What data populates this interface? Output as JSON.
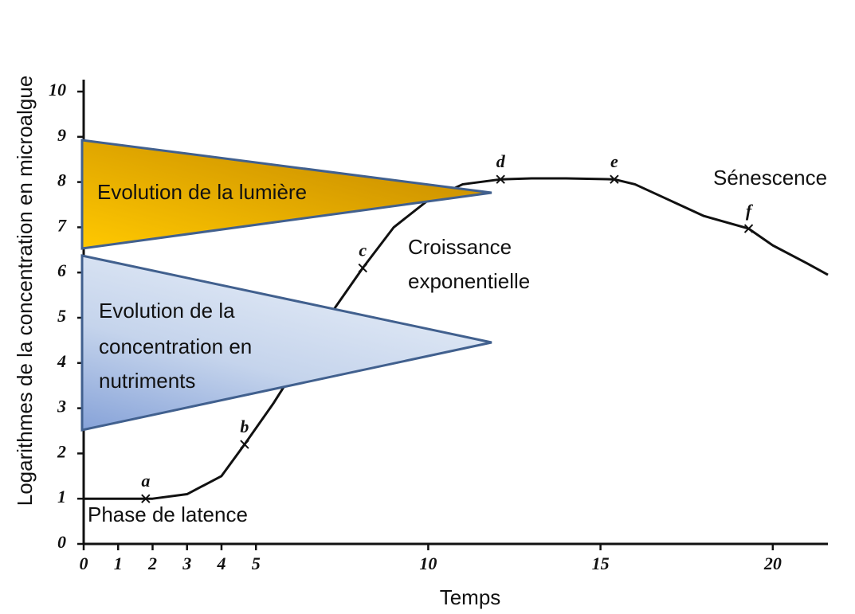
{
  "chart_data": {
    "type": "line",
    "x_label": "Temps",
    "y_label": "Logarithmes de la concentration en microalgue",
    "xlim": [
      0,
      21.6
    ],
    "ylim": [
      0,
      10
    ],
    "xticks": [
      0,
      1,
      2,
      3,
      4,
      5,
      10,
      15,
      20
    ],
    "yticks": [
      0,
      1,
      2,
      3,
      4,
      5,
      6,
      7,
      8,
      9,
      10
    ],
    "x": [
      0,
      1,
      2,
      3,
      4,
      4.67,
      5.5,
      6,
      7,
      8.1,
      9,
      10,
      11,
      12.1,
      13,
      14,
      15.4,
      16,
      17,
      18,
      19.3,
      20,
      21,
      21.6
    ],
    "series": [
      {
        "color": "#111111",
        "values": [
          1,
          1,
          1,
          1.1,
          1.5,
          2.2,
          3.1,
          3.7,
          4.9,
          6.1,
          7.0,
          7.6,
          7.95,
          8.06,
          8.08,
          8.08,
          8.06,
          7.95,
          7.6,
          7.25,
          6.97,
          6.6,
          6.2,
          5.95
        ]
      }
    ],
    "markers": {
      "labels": [
        "a",
        "b",
        "c",
        "d",
        "e",
        "f"
      ],
      "x": [
        1.8,
        4.67,
        8.1,
        12.1,
        15.4,
        19.3
      ],
      "y": [
        1,
        2.2,
        6.1,
        8.06,
        8.06,
        6.97
      ]
    },
    "annotations": {
      "light": "Evolution de la lumière",
      "nutrients": [
        "Evolution de la",
        "concentration en",
        "nutriments"
      ],
      "exponential": [
        "Croissance",
        "exponentielle"
      ],
      "senescence": "Sénescence",
      "lag": "Phase de latence"
    }
  }
}
